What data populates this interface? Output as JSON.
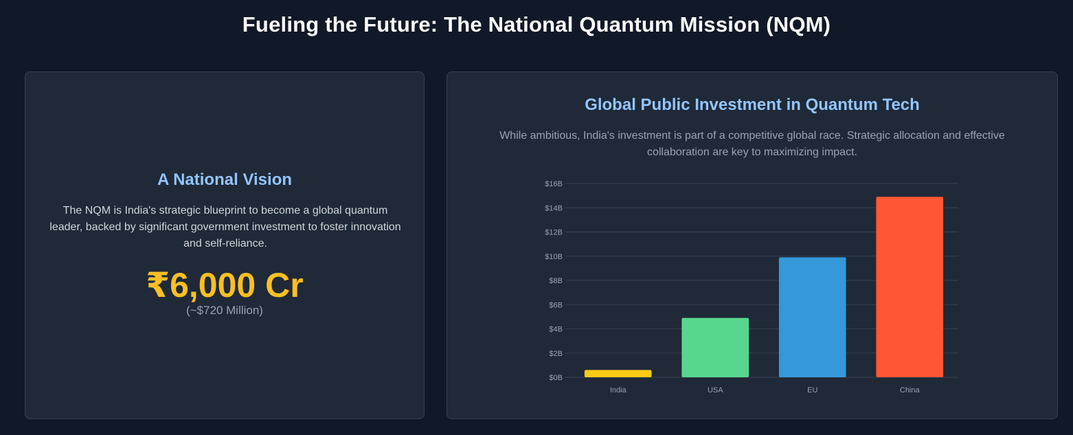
{
  "header": {
    "title": "Fueling the Future: The National Quantum Mission (NQM)"
  },
  "vision": {
    "title": "A National Vision",
    "description": "The NQM is India's strategic blueprint to become a global quantum leader, backed by significant government investment to foster innovation and self-reliance.",
    "amount": "₹6,000 Cr",
    "conversion": "(~$720 Million)"
  },
  "investment": {
    "title": "Global Public Investment in Quantum Tech",
    "description": "While ambitious, India's investment is part of a competitive global race. Strategic allocation and effective collaboration are key to maximizing impact."
  },
  "colors": {
    "accent_title": "#93c5fd",
    "amount": "#fbbf24",
    "background": "#111827",
    "card": "#1f2937"
  },
  "chart_data": {
    "type": "bar",
    "categories": [
      "India",
      "USA",
      "EU",
      "China"
    ],
    "values": [
      0.6,
      4.9,
      9.9,
      14.9
    ],
    "colors": [
      "#facc15",
      "#57d68d",
      "#3498db",
      "#ff5733"
    ],
    "ylim": [
      0,
      16
    ],
    "yticks": [
      "$0B",
      "$2B",
      "$4B",
      "$6B",
      "$8B",
      "$10B",
      "$12B",
      "$14B",
      "$16B"
    ],
    "grid": true,
    "legend": "none"
  }
}
